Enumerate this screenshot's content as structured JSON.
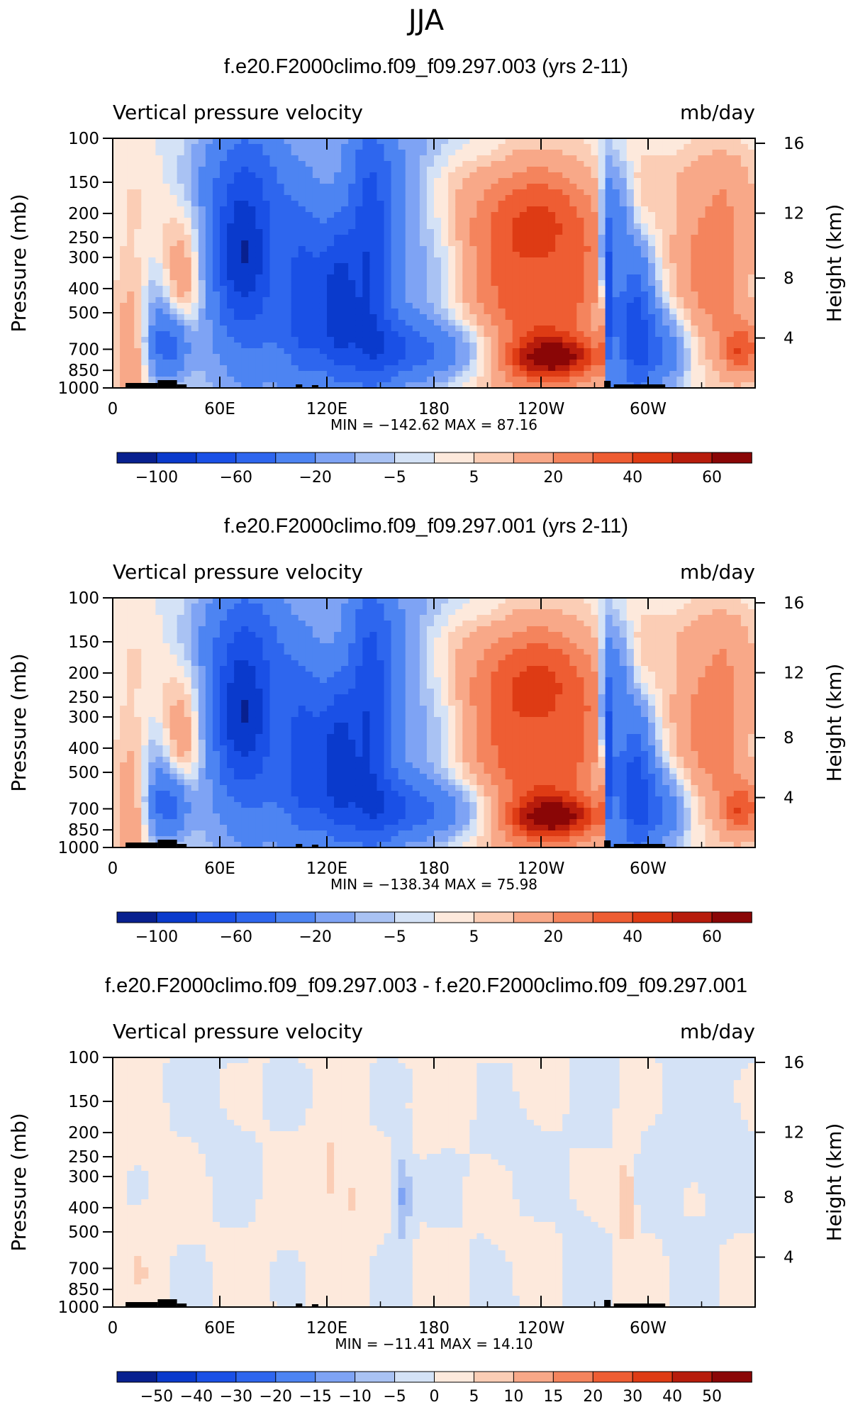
{
  "suptitle": "JJA",
  "colors": {
    "neg": [
      "#08208f",
      "#0a3acc",
      "#1a50e6",
      "#2e66ee",
      "#4d84f2",
      "#7ea3f4",
      "#a9c2f3",
      "#d4e2f6"
    ],
    "pos": [
      "#fde9dc",
      "#fbcdb5",
      "#f8a888",
      "#f4845d",
      "#ee5d33",
      "#de3b14",
      "#b71c0c",
      "#8a0606"
    ]
  },
  "panels": [
    {
      "title": "f.e20.F2000climo.f09_f09.297.003 (yrs 2-11)",
      "left_label": "Vertical pressure velocity",
      "right_label": "mb/day",
      "minmax": "MIN = −142.62   MAX =   87.16",
      "cb_labels": [
        "−100",
        "−60",
        "−20",
        "−5",
        "5",
        "20",
        "40",
        "60"
      ],
      "field": "full"
    },
    {
      "title": "f.e20.F2000climo.f09_f09.297.001 (yrs 2-11)",
      "left_label": "Vertical pressure velocity",
      "right_label": "mb/day",
      "minmax": "MIN = −138.34   MAX =   75.98",
      "cb_labels": [
        "−100",
        "−60",
        "−20",
        "−5",
        "5",
        "20",
        "40",
        "60"
      ],
      "field": "full"
    },
    {
      "title": "f.e20.F2000climo.f09_f09.297.003 - f.e20.F2000climo.f09_f09.297.001",
      "left_label": "Vertical pressure velocity",
      "right_label": "mb/day",
      "minmax": "MIN = −11.41   MAX =   14.10",
      "cb_labels": [
        "−50",
        "−40",
        "−30",
        "−20",
        "−15",
        "−10",
        "−5",
        "0",
        "5",
        "10",
        "15",
        "20",
        "30",
        "40",
        "50"
      ],
      "field": "diff"
    }
  ],
  "chart_data": [
    {
      "type": "heatmap",
      "title": "f.e20.F2000climo.f09_f09.297.003 (yrs 2-11)",
      "subtitle_left": "Vertical pressure velocity",
      "units": "mb/day",
      "xlabel": "",
      "ylabel": "Pressure (mb)",
      "y2label": "Height (km)",
      "x_ticks": [
        "0",
        "60E",
        "120E",
        "180",
        "120W",
        "60W"
      ],
      "y_ticks": [
        100,
        150,
        200,
        250,
        300,
        400,
        500,
        700,
        850,
        1000
      ],
      "y2_ticks": [
        16,
        12,
        8,
        4
      ],
      "xlim": [
        0,
        360
      ],
      "ylim": [
        1000,
        100
      ],
      "y_scale": "log",
      "min": -142.62,
      "max": 87.16,
      "levels": [
        -100,
        -80,
        -60,
        -40,
        -20,
        -10,
        -5,
        0,
        5,
        10,
        20,
        30,
        40,
        50,
        60
      ],
      "colorbar_labels": [
        "−100",
        "−60",
        "−20",
        "−5",
        "5",
        "20",
        "40",
        "60"
      ]
    },
    {
      "type": "heatmap",
      "title": "f.e20.F2000climo.f09_f09.297.001 (yrs 2-11)",
      "subtitle_left": "Vertical pressure velocity",
      "units": "mb/day",
      "xlabel": "",
      "ylabel": "Pressure (mb)",
      "y2label": "Height (km)",
      "x_ticks": [
        "0",
        "60E",
        "120E",
        "180",
        "120W",
        "60W"
      ],
      "y_ticks": [
        100,
        150,
        200,
        250,
        300,
        400,
        500,
        700,
        850,
        1000
      ],
      "y2_ticks": [
        16,
        12,
        8,
        4
      ],
      "xlim": [
        0,
        360
      ],
      "ylim": [
        1000,
        100
      ],
      "y_scale": "log",
      "min": -138.34,
      "max": 75.98,
      "levels": [
        -100,
        -80,
        -60,
        -40,
        -20,
        -10,
        -5,
        0,
        5,
        10,
        20,
        30,
        40,
        50,
        60
      ],
      "colorbar_labels": [
        "−100",
        "−60",
        "−20",
        "−5",
        "5",
        "20",
        "40",
        "60"
      ]
    },
    {
      "type": "heatmap",
      "title": "f.e20.F2000climo.f09_f09.297.003 - f.e20.F2000climo.f09_f09.297.001",
      "subtitle_left": "Vertical pressure velocity",
      "units": "mb/day",
      "xlabel": "",
      "ylabel": "Pressure (mb)",
      "y2label": "Height (km)",
      "x_ticks": [
        "0",
        "60E",
        "120E",
        "180",
        "120W",
        "60W"
      ],
      "y_ticks": [
        100,
        150,
        200,
        250,
        300,
        400,
        500,
        700,
        850,
        1000
      ],
      "y2_ticks": [
        16,
        12,
        8,
        4
      ],
      "xlim": [
        0,
        360
      ],
      "ylim": [
        1000,
        100
      ],
      "y_scale": "log",
      "min": -11.41,
      "max": 14.1,
      "levels": [
        -50,
        -40,
        -30,
        -20,
        -15,
        -10,
        -5,
        0,
        5,
        10,
        15,
        20,
        30,
        40,
        50
      ],
      "colorbar_labels": [
        "−50",
        "−40",
        "−30",
        "−20",
        "−15",
        "−10",
        "−5",
        "0",
        "5",
        "10",
        "15",
        "20",
        "30",
        "40",
        "50"
      ]
    }
  ]
}
